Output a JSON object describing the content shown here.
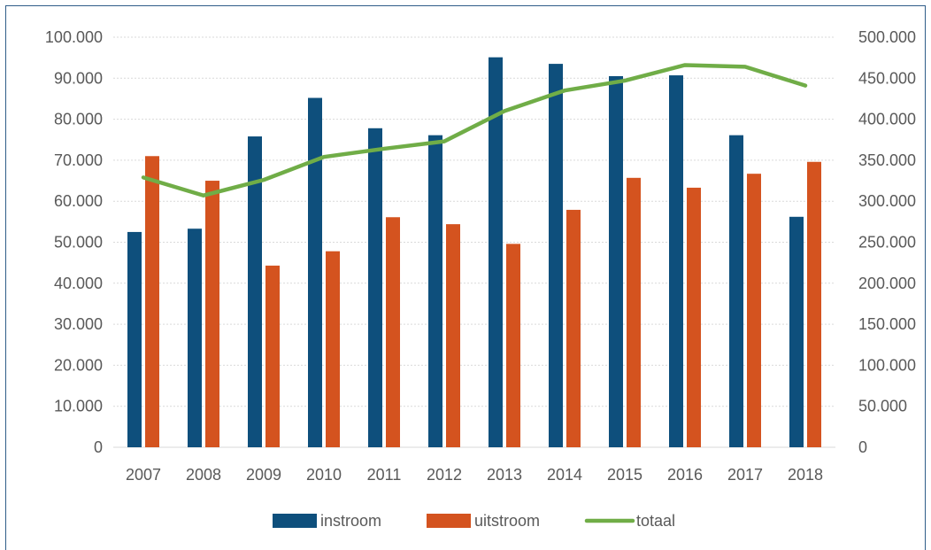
{
  "chart_data": {
    "type": "bar",
    "categories": [
      "2007",
      "2008",
      "2009",
      "2010",
      "2011",
      "2012",
      "2013",
      "2014",
      "2015",
      "2016",
      "2017",
      "2018"
    ],
    "series": [
      {
        "name": "instroom",
        "type": "bar",
        "axis": "left",
        "color": "#0e4f7c",
        "values": [
          52500,
          53300,
          75800,
          85200,
          77800,
          76100,
          95100,
          93500,
          90500,
          90700,
          76100,
          56200
        ]
      },
      {
        "name": "uitstroom",
        "type": "bar",
        "axis": "left",
        "color": "#d4531f",
        "values": [
          71000,
          65000,
          44300,
          47800,
          56100,
          54400,
          49600,
          57900,
          65700,
          63300,
          66700,
          69600
        ]
      },
      {
        "name": "totaal",
        "type": "line",
        "axis": "right",
        "color": "#70ad47",
        "values": [
          329000,
          307000,
          326000,
          354000,
          364000,
          373000,
          410000,
          435000,
          447000,
          466000,
          464000,
          441000
        ]
      }
    ],
    "ylim": [
      0,
      100000
    ],
    "ylim_right": [
      0,
      500000
    ],
    "y_ticks": [
      "0",
      "10.000",
      "20.000",
      "30.000",
      "40.000",
      "50.000",
      "60.000",
      "70.000",
      "80.000",
      "90.000",
      "100.000"
    ],
    "y_ticks_right": [
      "0",
      "50.000",
      "100.000",
      "150.000",
      "200.000",
      "250.000",
      "300.000",
      "350.000",
      "400.000",
      "450.000",
      "500.000"
    ],
    "grid": true,
    "legend": "bottom",
    "title": "",
    "xlabel": "",
    "ylabel": ""
  }
}
